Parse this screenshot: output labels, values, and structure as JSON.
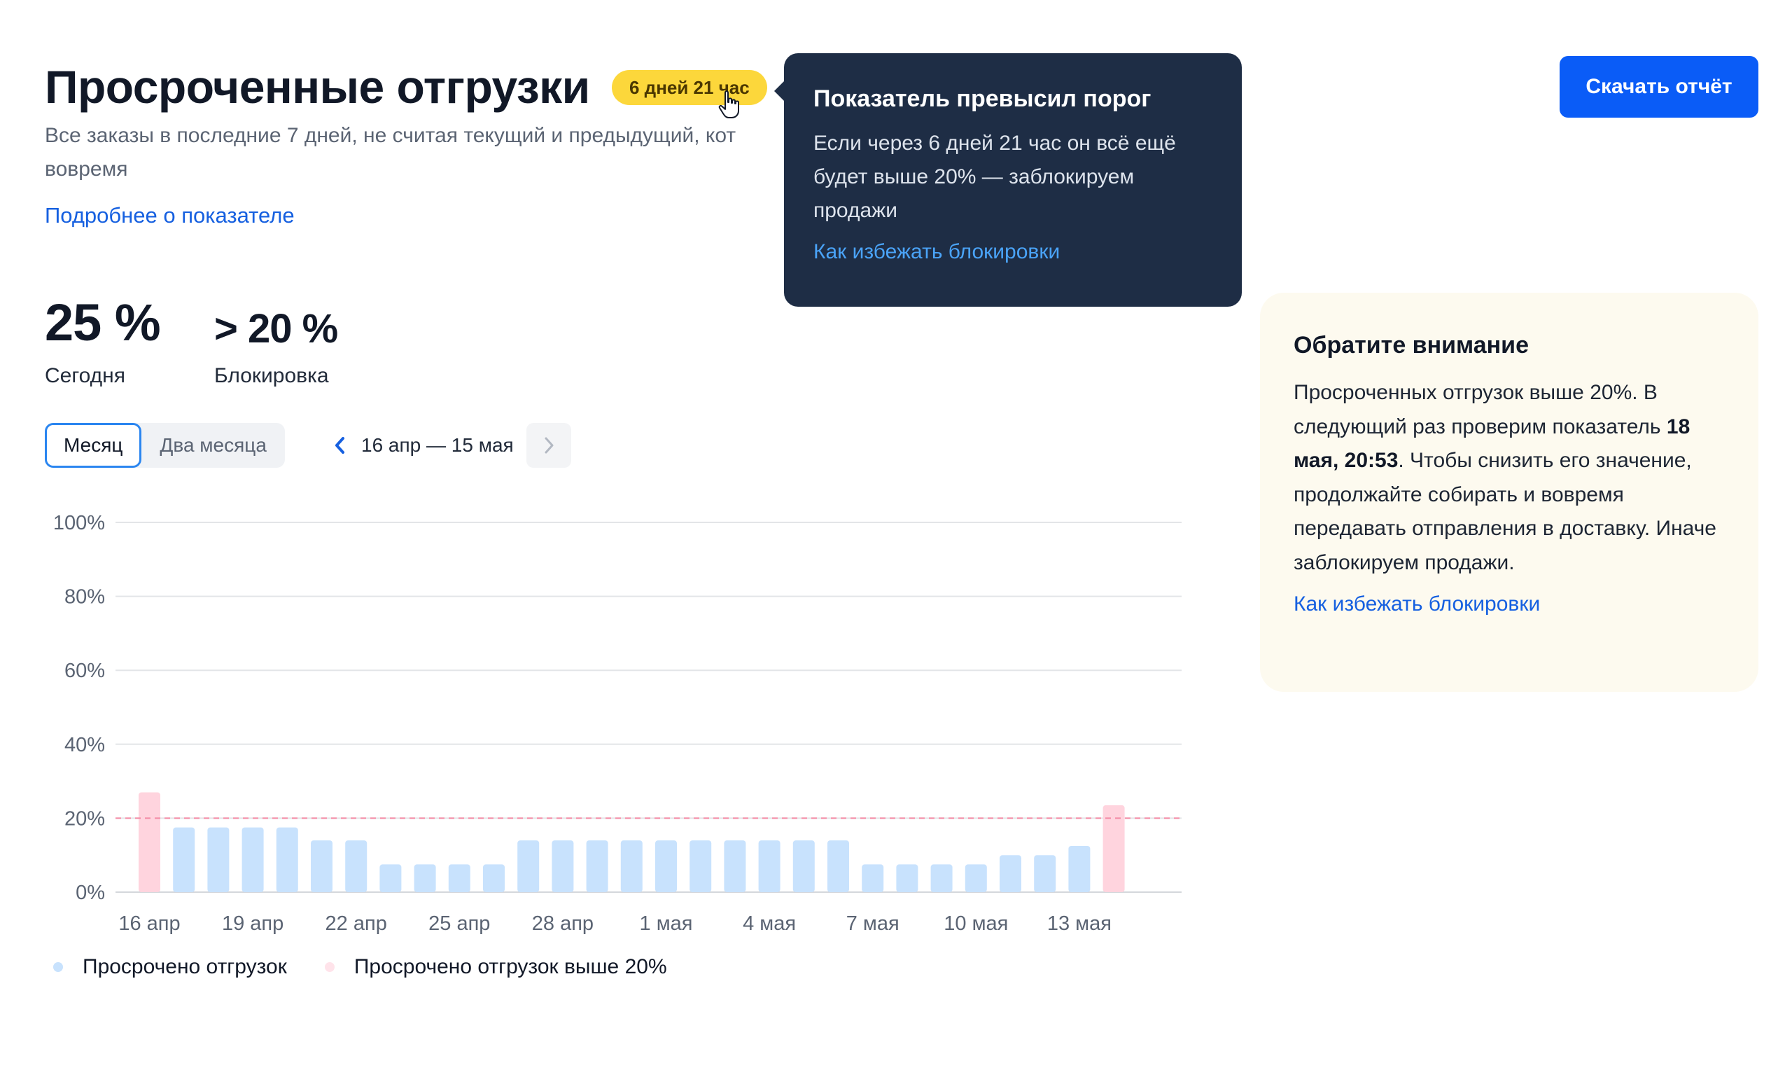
{
  "header": {
    "title": "Просроченные отгрузки",
    "badge": "6 дней 21 час",
    "subtitle": "Все заказы в последние 7 дней, не считая текущий и предыдущий, кот",
    "subtitle_line2": "вовремя",
    "more_link": "Подробнее о показателе",
    "download_button": "Скачать отчёт"
  },
  "tooltip": {
    "title": "Показатель превысил порог",
    "text": "Если через 6 дней 21 час он всё ещё будет выше 20% — заблокируем продажи",
    "link": "Как избежать блокировки"
  },
  "kpis": {
    "today_value": "25 %",
    "today_label": "Сегодня",
    "block_value": "> 20 %",
    "block_label": "Блокировка"
  },
  "controls": {
    "period_month": "Месяц",
    "period_two_months": "Два месяца",
    "date_range": "16 апр — 15 мая",
    "prev_icon": "chevron-left-icon",
    "next_icon": "chevron-right-icon"
  },
  "chart_data": {
    "type": "bar",
    "y_ticks": [
      "100%",
      "80%",
      "60%",
      "40%",
      "20%",
      "0%"
    ],
    "ylim": [
      0,
      100
    ],
    "threshold": 20,
    "x_tick_labels": [
      "16 апр",
      "19 апр",
      "22 апр",
      "25 апр",
      "28 апр",
      "1 мая",
      "4 мая",
      "7 мая",
      "10 мая",
      "13 мая"
    ],
    "categories": [
      "16 апр",
      "17 апр",
      "18 апр",
      "19 апр",
      "20 апр",
      "21 апр",
      "22 апр",
      "23 апр",
      "24 апр",
      "25 апр",
      "26 апр",
      "27 апр",
      "28 апр",
      "29 апр",
      "30 апр",
      "1 мая",
      "2 мая",
      "3 мая",
      "4 мая",
      "5 мая",
      "6 мая",
      "7 мая",
      "8 мая",
      "9 мая",
      "10 мая",
      "11 мая",
      "12 мая",
      "13 мая",
      "14 мая"
    ],
    "values": [
      27,
      17.5,
      17.5,
      17.5,
      17.5,
      14,
      14,
      7.5,
      7.5,
      7.5,
      7.5,
      14,
      14,
      14,
      14,
      14,
      14,
      14,
      14,
      14,
      14,
      7.5,
      7.5,
      7.5,
      7.5,
      10,
      10,
      12.5,
      23.5
    ],
    "colors": {
      "normal": "#c8e2fd",
      "above": "#ffd4de",
      "threshold_line": "#f48aa5",
      "grid": "#e3e5e8",
      "axis": "#d4d7dc"
    }
  },
  "legend": {
    "series_normal": "Просрочено отгрузок",
    "series_above": "Просрочено отгрузок выше 20%"
  },
  "notice": {
    "title": "Обратите внимание",
    "text_before": "Просроченных отгрузок выше 20%. В следующий раз проверим показатель ",
    "text_bold": "18 мая, 20:53",
    "text_after": ". Чтобы снизить его значение, продолжайте собирать и вовремя передавать отправления в доставку. Иначе заблокируем продажи.",
    "link": "Как избежать блокировки"
  }
}
